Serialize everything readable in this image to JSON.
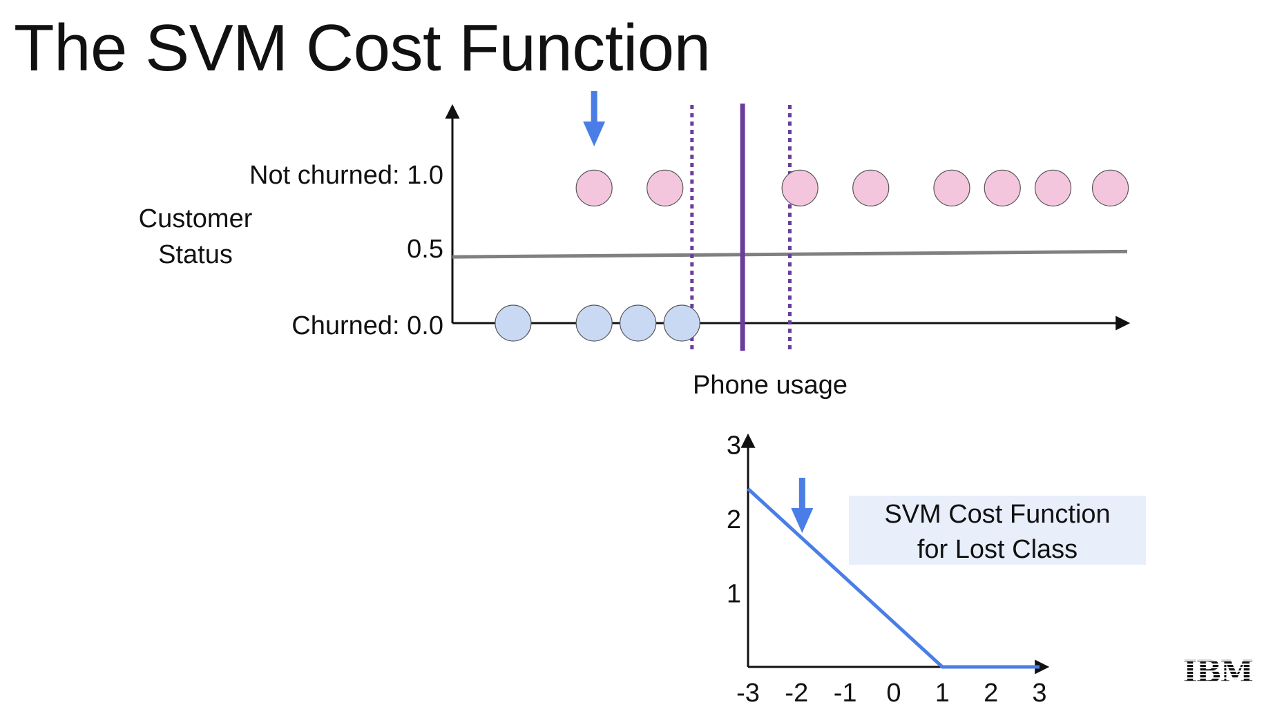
{
  "slide": {
    "title": "The SVM Cost Function",
    "logo_text": "IBM"
  },
  "chart_data": [
    {
      "type": "scatter",
      "xlabel": "Phone usage",
      "ylabel_lines": [
        "Customer",
        "Status"
      ],
      "y_ticks": [
        {
          "value": 1.0,
          "label": "Not churned: 1.0"
        },
        {
          "value": 0.5,
          "label": "0.5"
        },
        {
          "value": 0.0,
          "label": "Churned: 0.0"
        }
      ],
      "xlim": [
        0,
        10
      ],
      "ylim": [
        0,
        1.6
      ],
      "series": [
        {
          "name": "Not churned",
          "color": "#f4c6dd",
          "y": 1.0,
          "x": [
            2.1,
            3.15,
            5.15,
            6.2,
            7.4,
            8.15,
            8.9,
            9.75
          ]
        },
        {
          "name": "Churned",
          "color": "#c9d9f4",
          "y": 0.0,
          "x": [
            0.9,
            2.1,
            2.75,
            3.4
          ]
        }
      ],
      "regression_line": {
        "color": "#808080",
        "y_start": 0.49,
        "y_end": 0.53
      },
      "decision_boundary": {
        "x": 4.3,
        "color": "#6a3d9a"
      },
      "margins": {
        "x": [
          3.55,
          5.0
        ],
        "color": "#6a3d9a",
        "style": "dotted"
      },
      "highlight_arrow": {
        "target": "Not churned point at x=2.1",
        "color": "#4a7ee6"
      },
      "grid": false
    },
    {
      "type": "line",
      "title_lines": [
        "SVM Cost Function",
        "for Lost Class"
      ],
      "x_ticks": [
        "-3",
        "-2",
        "-1",
        "0",
        "1",
        "2",
        "3"
      ],
      "y_ticks": [
        "1",
        "2",
        "3"
      ],
      "xlim": [
        -3,
        3
      ],
      "ylim": [
        0,
        3.2
      ],
      "series": [
        {
          "color": "#4a7ee6",
          "x": [
            -3,
            1,
            3
          ],
          "y": [
            2.4,
            0,
            0
          ]
        }
      ],
      "highlight_arrow": {
        "x": -2,
        "color": "#4a7ee6"
      },
      "grid": false
    }
  ]
}
